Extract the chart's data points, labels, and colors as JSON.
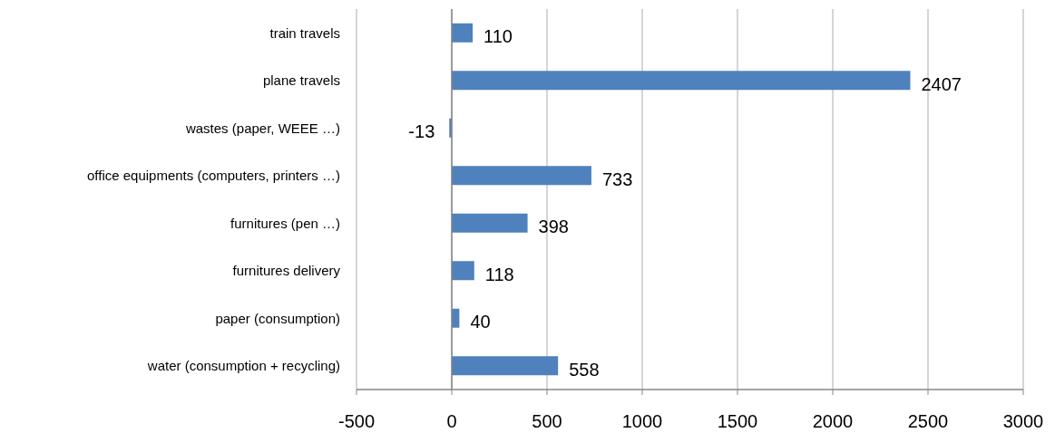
{
  "chart_data": {
    "type": "bar",
    "orientation": "horizontal",
    "categories": [
      "train travels",
      "plane travels",
      "wastes (paper, WEEE …)",
      "office equipments (computers, printers …)",
      "furnitures (pen …)",
      "furnitures delivery",
      "paper (consumption)",
      "water (consumption + recycling)"
    ],
    "values": [
      110,
      2407,
      -13,
      733,
      398,
      118,
      40,
      558
    ],
    "color": "#4f81bd",
    "xlim": [
      -500,
      3000
    ],
    "xticks": [
      -500,
      0,
      500,
      1000,
      1500,
      2000,
      2500,
      3000
    ],
    "grid": "x",
    "data_labels": true
  }
}
